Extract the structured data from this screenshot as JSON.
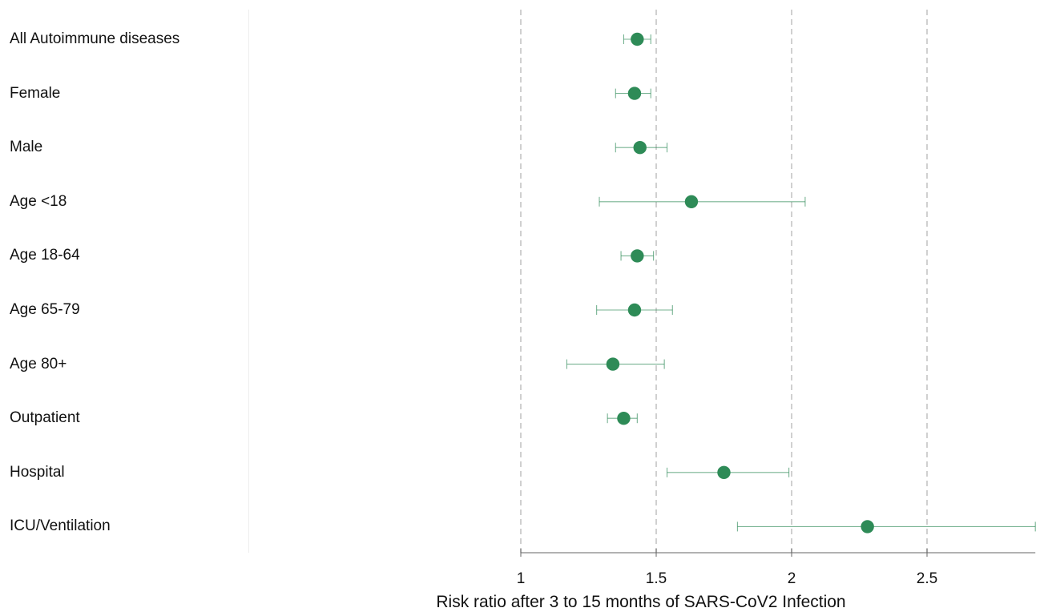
{
  "chart_data": {
    "type": "forest",
    "xlabel": "Risk ratio after 3 to 15 months of SARS-CoV2 Infection",
    "xlim": [
      1,
      2.9
    ],
    "xticks": [
      1,
      1.5,
      2,
      2.5
    ],
    "xtick_labels": [
      "1",
      "1.5",
      "2",
      "2.5"
    ],
    "reference_lines": [
      1,
      1.5,
      2,
      2.5
    ],
    "marker_color": "#2e8b57",
    "ci_color": "#2e8b57",
    "rows": [
      {
        "label": "All Autoimmune diseases",
        "rr": 1.43,
        "lower": 1.38,
        "upper": 1.48
      },
      {
        "label": "Female",
        "rr": 1.42,
        "lower": 1.35,
        "upper": 1.48
      },
      {
        "label": "Male",
        "rr": 1.44,
        "lower": 1.35,
        "upper": 1.54
      },
      {
        "label": "Age <18",
        "rr": 1.63,
        "lower": 1.29,
        "upper": 2.05
      },
      {
        "label": "Age 18-64",
        "rr": 1.43,
        "lower": 1.37,
        "upper": 1.49
      },
      {
        "label": "Age 65-79",
        "rr": 1.42,
        "lower": 1.28,
        "upper": 1.56
      },
      {
        "label": "Age 80+",
        "rr": 1.34,
        "lower": 1.17,
        "upper": 1.53
      },
      {
        "label": "Outpatient",
        "rr": 1.38,
        "lower": 1.32,
        "upper": 1.43
      },
      {
        "label": "Hospital",
        "rr": 1.75,
        "lower": 1.54,
        "upper": 1.99
      },
      {
        "label": "ICU/Ventilation",
        "rr": 2.28,
        "lower": 1.8,
        "upper": 2.9
      }
    ]
  }
}
